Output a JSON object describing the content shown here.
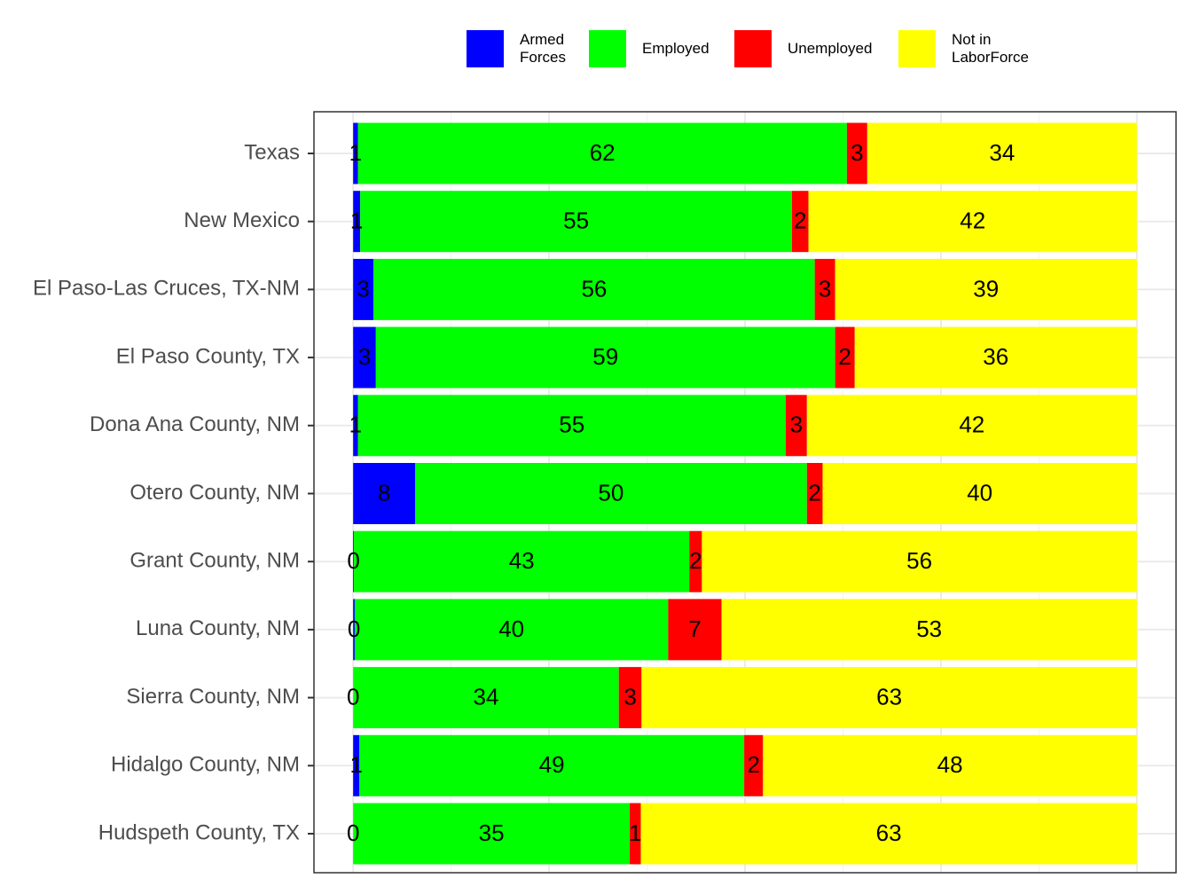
{
  "chart_data": {
    "type": "stacked-bar-horizontal",
    "categories": [
      "Texas",
      "New Mexico",
      "El Paso-Las Cruces, TX-NM",
      "El Paso County, TX",
      "Dona Ana County, NM",
      "Otero County, NM",
      "Grant County, NM",
      "Luna County, NM",
      "Sierra County, NM",
      "Hidalgo County, NM",
      "Hudspeth County, TX"
    ],
    "series": [
      {
        "name": "Armed Forces",
        "color": "#0000ff",
        "values": [
          0.6,
          0.9,
          2.6,
          2.9,
          0.6,
          7.9,
          0.1,
          0.2,
          0.0,
          0.8,
          0.0
        ],
        "value_labels": [
          "1",
          "1",
          "3",
          "3",
          "1",
          "8",
          "0",
          "0",
          "0",
          "1",
          "0"
        ]
      },
      {
        "name": "Employed",
        "color": "#00ff00",
        "values": [
          62.4,
          55.1,
          56.3,
          58.6,
          54.6,
          50.0,
          42.8,
          40.0,
          33.9,
          49.1,
          35.3
        ],
        "value_labels": [
          "62",
          "55",
          "56",
          "59",
          "55",
          "50",
          "43",
          "40",
          "34",
          "49",
          "35"
        ]
      },
      {
        "name": "Unemployed",
        "color": "#ff0000",
        "values": [
          2.6,
          2.1,
          2.6,
          2.5,
          2.7,
          2.0,
          1.6,
          6.8,
          2.9,
          2.4,
          1.4
        ],
        "value_labels": [
          "3",
          "2",
          "3",
          "2",
          "3",
          "2",
          "2",
          "7",
          "3",
          "2",
          "1"
        ]
      },
      {
        "name": "Not in LaborForce",
        "color": "#ffff00",
        "values": [
          34.4,
          41.9,
          38.5,
          36.0,
          42.1,
          40.1,
          55.5,
          53.0,
          63.2,
          47.7,
          63.3
        ],
        "value_labels": [
          "34",
          "42",
          "39",
          "36",
          "42",
          "40",
          "56",
          "53",
          "63",
          "48",
          "63"
        ]
      }
    ],
    "xlim": [
      -5,
      105
    ],
    "xticks": [
      0,
      25,
      50,
      75,
      100
    ],
    "grid": true
  }
}
